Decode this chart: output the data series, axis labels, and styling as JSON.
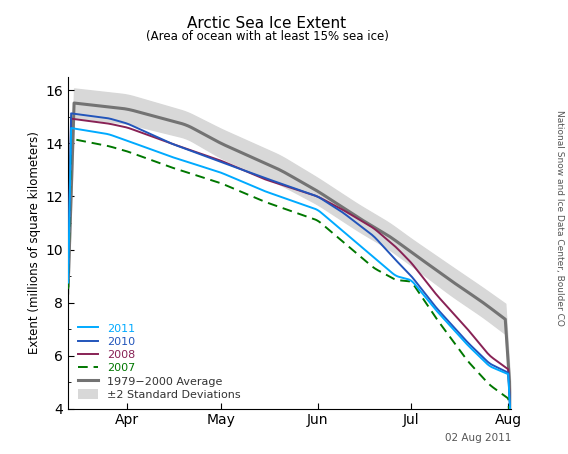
{
  "title": "Arctic Sea Ice Extent",
  "subtitle": "(Area of ocean with at least 15% sea ice)",
  "ylabel": "Extent (millions of square kilometers)",
  "watermark": "National Snow and Ice Data Center, Boulder CO",
  "date_label": "02 Aug 2011",
  "xlim_days": [
    72,
    214
  ],
  "ylim": [
    4,
    16.5
  ],
  "yticks": [
    4,
    6,
    8,
    10,
    12,
    14,
    16
  ],
  "xtick_months": [
    {
      "label": "Apr",
      "day": 91
    },
    {
      "label": "May",
      "day": 121
    },
    {
      "label": "Jun",
      "day": 152
    },
    {
      "label": "Jul",
      "day": 182
    },
    {
      "label": "Aug",
      "day": 213
    }
  ],
  "avg_color": "#737373",
  "shade_color": "#d8d8d8",
  "line_2011_color": "#00aaff",
  "line_2010_color": "#2255bb",
  "line_2008_color": "#882255",
  "line_2007_color": "#007700",
  "avg_linewidth": 2.2,
  "year_linewidth": 1.4,
  "background_color": "#ffffff",
  "avg_keypoints_x": [
    72,
    91,
    110,
    121,
    140,
    152,
    165,
    175,
    182,
    195,
    205,
    214
  ],
  "avg_keypoints_y": [
    15.55,
    15.3,
    14.7,
    14.0,
    13.0,
    12.2,
    11.2,
    10.5,
    9.9,
    8.8,
    8.0,
    7.2
  ],
  "std_upper_keypoints_x": [
    72,
    91,
    110,
    121,
    140,
    152,
    165,
    175,
    182,
    195,
    205,
    214
  ],
  "std_upper_keypoints_y": [
    16.1,
    15.85,
    15.2,
    14.55,
    13.55,
    12.7,
    11.7,
    11.0,
    10.4,
    9.35,
    8.55,
    7.8
  ],
  "std_lower_keypoints_x": [
    72,
    91,
    110,
    121,
    140,
    152,
    165,
    175,
    182,
    195,
    205,
    214
  ],
  "std_lower_keypoints_y": [
    15.0,
    14.75,
    14.2,
    13.45,
    12.45,
    11.7,
    10.7,
    10.0,
    9.4,
    8.25,
    7.45,
    6.65
  ],
  "y2011_x": [
    72,
    85,
    91,
    105,
    121,
    135,
    152,
    160,
    170,
    177,
    182,
    190,
    200,
    207,
    214
  ],
  "y2011_y": [
    14.6,
    14.35,
    14.1,
    13.5,
    12.9,
    12.2,
    11.5,
    10.7,
    9.7,
    9.0,
    8.85,
    7.7,
    6.4,
    5.6,
    5.25
  ],
  "y2010_x": [
    72,
    85,
    91,
    105,
    121,
    135,
    152,
    160,
    170,
    177,
    182,
    190,
    200,
    207,
    214
  ],
  "y2010_y": [
    15.15,
    14.95,
    14.75,
    14.0,
    13.3,
    12.7,
    12.0,
    11.4,
    10.5,
    9.6,
    9.0,
    7.8,
    6.5,
    5.7,
    5.3
  ],
  "y2008_x": [
    72,
    85,
    91,
    105,
    121,
    135,
    152,
    160,
    170,
    177,
    182,
    190,
    200,
    207,
    214
  ],
  "y2008_y": [
    14.95,
    14.75,
    14.6,
    14.0,
    13.35,
    12.65,
    12.0,
    11.5,
    10.8,
    10.1,
    9.5,
    8.3,
    7.0,
    6.0,
    5.4
  ],
  "y2007_x": [
    72,
    85,
    91,
    105,
    121,
    135,
    152,
    160,
    170,
    177,
    182,
    190,
    200,
    207,
    214
  ],
  "y2007_y": [
    14.2,
    13.9,
    13.7,
    13.1,
    12.5,
    11.8,
    11.1,
    10.3,
    9.3,
    8.85,
    8.8,
    7.4,
    5.8,
    4.9,
    4.3
  ]
}
